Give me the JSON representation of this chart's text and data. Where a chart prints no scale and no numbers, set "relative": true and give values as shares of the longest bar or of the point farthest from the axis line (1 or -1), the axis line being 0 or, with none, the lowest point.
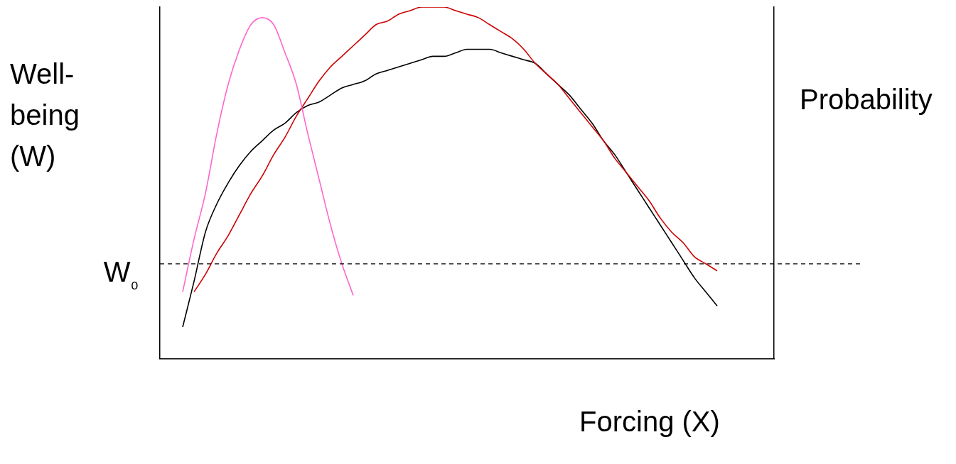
{
  "chart_data": {
    "type": "line",
    "relative": true,
    "xlabel": "Forcing (X)",
    "ylabel": "Well-being (W)",
    "y2label": "Probability",
    "legend": false,
    "grid": false,
    "marker": "none",
    "line_style": "solid",
    "categories": [
      null,
      null,
      null,
      null,
      null,
      null,
      null,
      null,
      null,
      null,
      null,
      null,
      null,
      null,
      null,
      null,
      null,
      null,
      null,
      null,
      null,
      null,
      null,
      null,
      null,
      null,
      null,
      null,
      null,
      null,
      null,
      null,
      null,
      null,
      null,
      null,
      null,
      null,
      null,
      null,
      null,
      null,
      null,
      null,
      null,
      null,
      null,
      null,
      null,
      null,
      null,
      null,
      null,
      null,
      null
    ],
    "series": [
      {
        "color": "#ff66cc",
        "values": [
          null,
          null,
          0.19,
          0.34,
          0.47,
          0.64,
          0.78,
          0.88,
          0.95,
          0.97,
          0.95,
          0.87,
          0.78,
          0.64,
          0.51,
          0.38,
          0.27,
          0.18,
          null,
          null,
          null,
          null,
          null,
          null,
          null,
          null,
          null,
          null,
          null,
          null,
          null,
          null,
          null,
          null,
          null,
          null,
          null,
          null,
          null,
          null,
          null,
          null,
          null,
          null,
          null,
          null,
          null,
          null,
          null,
          null,
          null,
          null,
          null,
          null,
          null
        ]
      },
      {
        "color": "#cc0000",
        "values": [
          null,
          null,
          null,
          0.19,
          0.24,
          0.3,
          0.35,
          0.41,
          0.47,
          0.52,
          0.58,
          0.63,
          0.69,
          0.74,
          0.79,
          0.83,
          0.86,
          0.89,
          0.92,
          0.95,
          0.96,
          0.98,
          0.99,
          1.0,
          1.0,
          1.0,
          0.99,
          0.98,
          0.97,
          0.95,
          0.93,
          0.91,
          0.88,
          0.84,
          0.81,
          0.78,
          0.74,
          0.7,
          0.66,
          0.62,
          0.57,
          0.53,
          0.49,
          0.45,
          0.4,
          0.36,
          0.33,
          0.29,
          0.27,
          0.25,
          null,
          null,
          null,
          null,
          null
        ]
      },
      {
        "color": "#000000",
        "values": [
          null,
          null,
          0.09,
          0.22,
          0.36,
          0.44,
          0.5,
          0.55,
          0.59,
          0.62,
          0.65,
          0.67,
          0.7,
          0.72,
          0.73,
          0.75,
          0.77,
          0.78,
          0.79,
          0.81,
          0.82,
          0.83,
          0.84,
          0.85,
          0.86,
          0.86,
          0.87,
          0.88,
          0.88,
          0.88,
          0.87,
          0.86,
          0.85,
          0.84,
          0.81,
          0.78,
          0.75,
          0.71,
          0.67,
          0.62,
          0.58,
          0.53,
          0.48,
          0.43,
          0.38,
          0.33,
          0.28,
          0.23,
          0.19,
          0.15,
          null,
          null,
          null,
          null,
          null
        ]
      }
    ],
    "ref_lines": [
      {
        "axis": "y",
        "value": 0.27,
        "label": "W₀",
        "color": "#000000",
        "line_style": "dashed"
      }
    ]
  }
}
